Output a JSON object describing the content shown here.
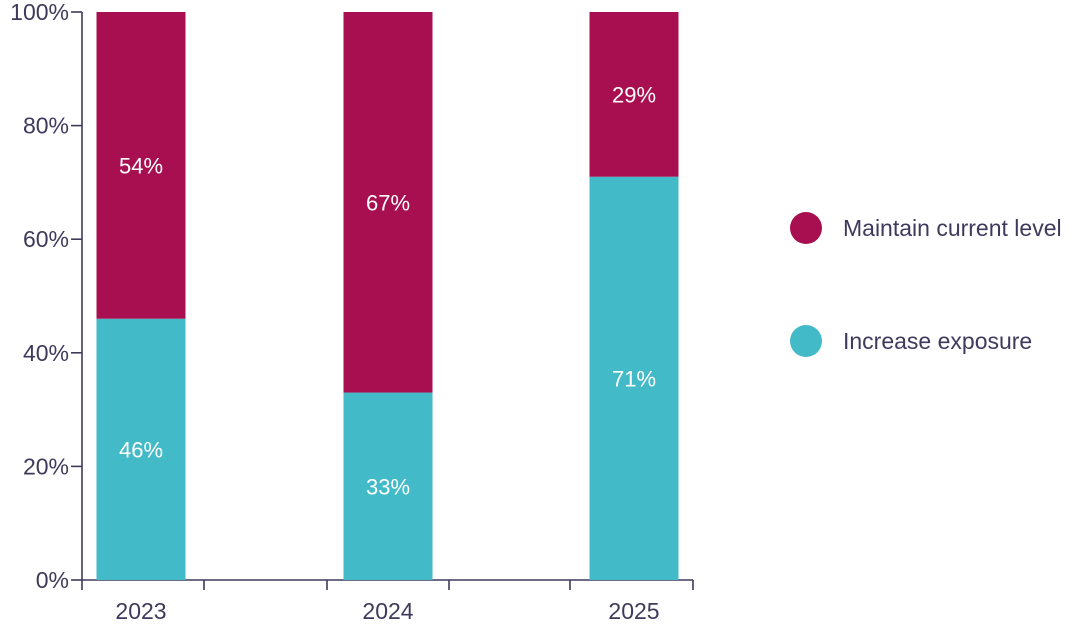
{
  "colors": {
    "maintain": "#a80f50",
    "increase": "#43bac7",
    "axis": "#3f3a5c"
  },
  "chart_data": {
    "type": "bar",
    "stacked": true,
    "title": "",
    "xlabel": "",
    "ylabel": "",
    "ylim": [
      0,
      100
    ],
    "yticks": [
      "0%",
      "20%",
      "40%",
      "60%",
      "80%",
      "100%"
    ],
    "categories": [
      "2023",
      "2024",
      "2025"
    ],
    "series": [
      {
        "name": "Increase exposure",
        "color_key": "increase",
        "values": [
          46,
          33,
          71
        ],
        "labels": [
          "46%",
          "33%",
          "71%"
        ]
      },
      {
        "name": "Maintain current level",
        "color_key": "maintain",
        "values": [
          54,
          67,
          29
        ],
        "labels": [
          "54%",
          "67%",
          "29%"
        ]
      }
    ],
    "legend": {
      "placement": "right",
      "order": [
        "Maintain current level",
        "Increase exposure"
      ]
    }
  }
}
